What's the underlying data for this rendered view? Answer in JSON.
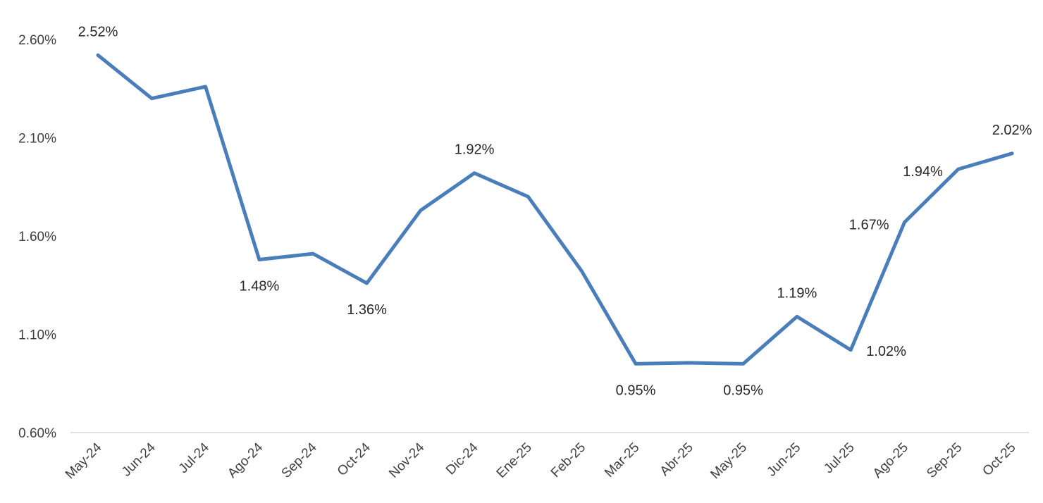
{
  "chart_data": {
    "type": "line",
    "title": "",
    "xlabel": "",
    "ylabel": "",
    "categories": [
      "May-24",
      "Jun-24",
      "Jul-24",
      "Ago-24",
      "Sep-24",
      "Oct-24",
      "Nov-24",
      "Dic-24",
      "Ene-25",
      "Feb-25",
      "Mar-25",
      "Abr-25",
      "May-25",
      "Jun-25",
      "Jul-25",
      "Ago-25",
      "Sep-25",
      "Oct-25"
    ],
    "series": [
      {
        "values": [
          2.52,
          2.3,
          2.36,
          1.48,
          1.51,
          1.36,
          1.73,
          1.92,
          1.8,
          1.42,
          0.95,
          0.955,
          0.95,
          1.19,
          1.02,
          1.67,
          1.94,
          2.02
        ],
        "color": "#4a7ebb"
      }
    ],
    "data_labels": [
      {
        "index": 0,
        "text": "2.52%",
        "position": "above"
      },
      {
        "index": 3,
        "text": "1.48%",
        "position": "below"
      },
      {
        "index": 5,
        "text": "1.36%",
        "position": "below"
      },
      {
        "index": 7,
        "text": "1.92%",
        "position": "above"
      },
      {
        "index": 10,
        "text": "0.95%",
        "position": "below"
      },
      {
        "index": 12,
        "text": "0.95%",
        "position": "below"
      },
      {
        "index": 13,
        "text": "1.19%",
        "position": "above"
      },
      {
        "index": 14,
        "text": "1.02%",
        "position": "right"
      },
      {
        "index": 15,
        "text": "1.67%",
        "position": "left"
      },
      {
        "index": 16,
        "text": "1.94%",
        "position": "left"
      },
      {
        "index": 17,
        "text": "2.02%",
        "position": "above"
      }
    ],
    "ylim": [
      0.6,
      2.6
    ],
    "yticks": [
      0.6,
      1.1,
      1.6,
      2.1,
      2.6
    ],
    "ytick_labels": [
      "0.60%",
      "1.10%",
      "1.60%",
      "2.10%",
      "2.60%"
    ],
    "grid": false,
    "legend": "none"
  }
}
